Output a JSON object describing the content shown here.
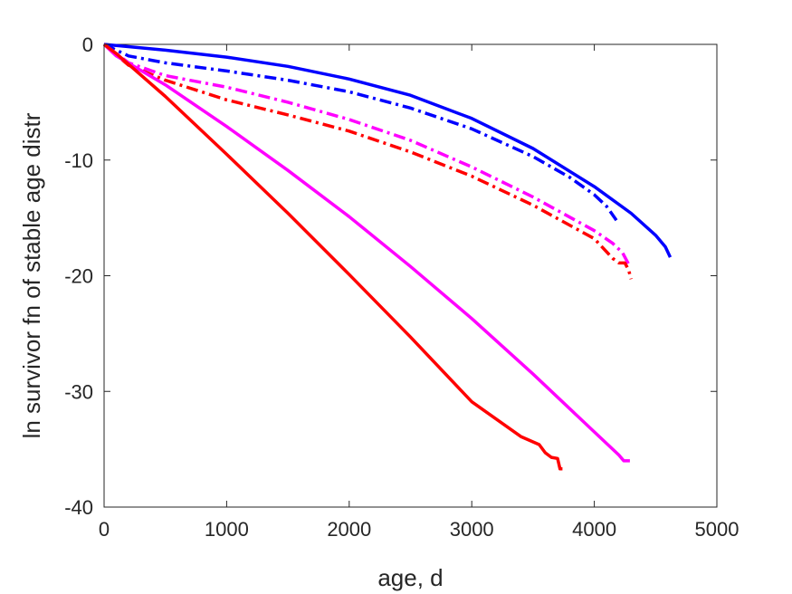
{
  "chart_data": {
    "type": "line",
    "title": "",
    "xlabel": "age, d",
    "ylabel": "ln survivor fn of stable age distr",
    "xlim": [
      0,
      5000
    ],
    "ylim": [
      -40,
      0
    ],
    "xticks": [
      0,
      1000,
      2000,
      3000,
      4000,
      5000
    ],
    "yticks": [
      0,
      -10,
      -20,
      -30,
      -40
    ],
    "xtick_labels": [
      "0",
      "1000",
      "2000",
      "3000",
      "4000",
      "5000"
    ],
    "ytick_labels": [
      "0",
      "-10",
      "-20",
      "-30",
      "-40"
    ],
    "grid": false,
    "legend": "none",
    "series": [
      {
        "color": "#0000ff",
        "style": "solid",
        "x": [
          0,
          500,
          1000,
          1500,
          2000,
          2500,
          3000,
          3500,
          4000,
          4300,
          4500,
          4580,
          4620
        ],
        "y": [
          0,
          -0.5,
          -1.1,
          -1.9,
          -3.0,
          -4.4,
          -6.4,
          -9.0,
          -12.3,
          -14.6,
          -16.5,
          -17.5,
          -18.4
        ]
      },
      {
        "color": "#0000ff",
        "style": "dashdot",
        "x": [
          0,
          200,
          500,
          1000,
          1500,
          2000,
          2500,
          3000,
          3500,
          3800,
          4000,
          4100,
          4180
        ],
        "y": [
          0,
          -1.0,
          -1.6,
          -2.3,
          -3.1,
          -4.1,
          -5.5,
          -7.3,
          -9.7,
          -11.5,
          -13.0,
          -14.0,
          -15.2
        ]
      },
      {
        "color": "#ff00ff",
        "style": "dashdot",
        "x": [
          0,
          200,
          500,
          1000,
          1500,
          2000,
          2500,
          3000,
          3500,
          4000,
          4150,
          4230,
          4280
        ],
        "y": [
          0,
          -1.6,
          -2.7,
          -3.7,
          -5.0,
          -6.5,
          -8.3,
          -10.6,
          -13.2,
          -16.1,
          -17.2,
          -18.0,
          -19.0
        ]
      },
      {
        "color": "#ff0000",
        "style": "dashdot",
        "x": [
          0,
          200,
          500,
          1000,
          1500,
          2000,
          2500,
          3000,
          3500,
          4000,
          4150,
          4200,
          4250,
          4280,
          4300
        ],
        "y": [
          0,
          -1.8,
          -3.1,
          -4.8,
          -6.1,
          -7.5,
          -9.3,
          -11.4,
          -13.9,
          -16.8,
          -18.5,
          -18.9,
          -18.9,
          -19.5,
          -20.3
        ]
      },
      {
        "color": "#ff00ff",
        "style": "solid",
        "x": [
          0,
          100,
          500,
          1000,
          1500,
          2000,
          2500,
          3000,
          3500,
          4000,
          4200,
          4240,
          4290
        ],
        "y": [
          0,
          -1.0,
          -3.5,
          -7.1,
          -10.9,
          -14.9,
          -19.2,
          -23.7,
          -28.5,
          -33.5,
          -35.5,
          -36.0,
          -36.0
        ]
      },
      {
        "color": "#ff0000",
        "style": "solid",
        "x": [
          0,
          100,
          500,
          1000,
          1500,
          2000,
          2500,
          3000,
          3400,
          3550,
          3600,
          3650,
          3700,
          3720,
          3740
        ],
        "y": [
          0,
          -0.8,
          -4.5,
          -9.5,
          -14.6,
          -19.9,
          -25.3,
          -30.9,
          -33.9,
          -34.6,
          -35.3,
          -35.7,
          -35.8,
          -36.7,
          -36.7
        ]
      }
    ]
  }
}
